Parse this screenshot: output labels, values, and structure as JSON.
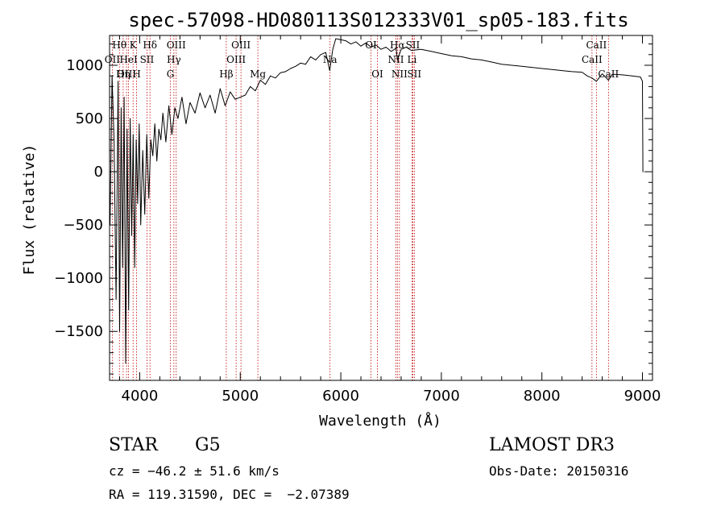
{
  "chart_data": {
    "type": "line",
    "title": "spec-57098-HD080113S012333V01_sp05-183.fits",
    "xlabel": "Wavelength (Å)",
    "ylabel": "Flux (relative)",
    "xlim": [
      3700,
      9100
    ],
    "ylim": [
      -1960,
      1280
    ],
    "xticks": [
      4000,
      5000,
      6000,
      7000,
      8000,
      9000
    ],
    "xtick_labels": [
      "4000",
      "5000",
      "6000",
      "7000",
      "8000",
      "9000"
    ],
    "yticks": [
      -1500,
      -1000,
      -500,
      0,
      500,
      1000
    ],
    "ytick_labels": [
      "−1500",
      "−1000",
      "−500",
      "0",
      "500",
      "1000"
    ],
    "series": [
      {
        "name": "flux",
        "x": [
          3705,
          3725,
          3745,
          3765,
          3785,
          3800,
          3815,
          3830,
          3845,
          3860,
          3875,
          3890,
          3905,
          3920,
          3935,
          3950,
          3965,
          3980,
          3995,
          4010,
          4030,
          4050,
          4070,
          4090,
          4110,
          4130,
          4150,
          4170,
          4190,
          4210,
          4230,
          4260,
          4290,
          4320,
          4350,
          4380,
          4420,
          4460,
          4500,
          4550,
          4600,
          4650,
          4700,
          4750,
          4800,
          4850,
          4900,
          4950,
          5000,
          5050,
          5100,
          5150,
          5200,
          5250,
          5300,
          5350,
          5400,
          5450,
          5500,
          5550,
          5600,
          5650,
          5700,
          5750,
          5800,
          5850,
          5890,
          5920,
          5950,
          6000,
          6050,
          6100,
          6150,
          6200,
          6250,
          6300,
          6350,
          6400,
          6450,
          6500,
          6550,
          6563,
          6600,
          6650,
          6700,
          6800,
          6900,
          7000,
          7100,
          7200,
          7300,
          7400,
          7500,
          7600,
          7700,
          7800,
          7900,
          8000,
          8100,
          8200,
          8300,
          8400,
          8450,
          8498,
          8542,
          8600,
          8662,
          8700,
          8800,
          8900,
          8980,
          9000,
          9005,
          9010
        ],
        "values": [
          -500,
          900,
          300,
          -1200,
          850,
          -1500,
          600,
          -900,
          700,
          -1800,
          400,
          -1300,
          500,
          -600,
          350,
          -900,
          300,
          -300,
          450,
          -500,
          200,
          -400,
          350,
          -250,
          300,
          150,
          450,
          100,
          400,
          300,
          550,
          280,
          620,
          350,
          600,
          500,
          700,
          450,
          650,
          550,
          740,
          600,
          720,
          550,
          780,
          620,
          750,
          680,
          700,
          720,
          800,
          760,
          860,
          820,
          900,
          880,
          930,
          940,
          970,
          990,
          1020,
          1010,
          1080,
          1050,
          1100,
          1120,
          950,
          1150,
          1250,
          1240,
          1230,
          1200,
          1220,
          1180,
          1210,
          1170,
          1190,
          1150,
          1170,
          1130,
          1160,
          1050,
          1150,
          1170,
          1140,
          1150,
          1130,
          1110,
          1090,
          1080,
          1060,
          1050,
          1030,
          1010,
          1000,
          990,
          980,
          970,
          960,
          950,
          940,
          935,
          900,
          880,
          850,
          920,
          860,
          915,
          910,
          900,
          890,
          850,
          0,
          0
        ]
      }
    ],
    "spectral_lines": [
      {
        "label": "Hθ",
        "wavelength": 3798,
        "row": 0
      },
      {
        "label": "OII",
        "wavelength": 3727,
        "row": 1
      },
      {
        "label": "OIII",
        "wavelength": 3869,
        "row": 2
      },
      {
        "label": "K",
        "wavelength": 3934,
        "row": 0
      },
      {
        "label": "HeI",
        "wavelength": 3889,
        "row": 1
      },
      {
        "label": "Hη",
        "wavelength": 3835,
        "row": 2
      },
      {
        "label": "H",
        "wavelength": 3969,
        "row": 2
      },
      {
        "label": "Hδ",
        "wavelength": 4102,
        "row": 0
      },
      {
        "label": "SII",
        "wavelength": 4072,
        "row": 1
      },
      {
        "label": "OIII",
        "wavelength": 4363,
        "row": 0
      },
      {
        "label": "Hγ",
        "wavelength": 4340,
        "row": 1
      },
      {
        "label": "G",
        "wavelength": 4305,
        "row": 2
      },
      {
        "label": "Hβ",
        "wavelength": 4861,
        "row": 2
      },
      {
        "label": "OIII",
        "wavelength": 5007,
        "row": 0
      },
      {
        "label": "OIII",
        "wavelength": 4959,
        "row": 1
      },
      {
        "label": "Mg",
        "wavelength": 5175,
        "row": 2
      },
      {
        "label": "Na",
        "wavelength": 5893,
        "row": 1
      },
      {
        "label": "OI",
        "wavelength": 6300,
        "row": 0
      },
      {
        "label": "OI",
        "wavelength": 6364,
        "row": 2
      },
      {
        "label": "Hα",
        "wavelength": 6563,
        "row": 0
      },
      {
        "label": "NII",
        "wavelength": 6548,
        "row": 1
      },
      {
        "label": "NII",
        "wavelength": 6583,
        "row": 2
      },
      {
        "label": "SII",
        "wavelength": 6716,
        "row": 0
      },
      {
        "label": "Li",
        "wavelength": 6708,
        "row": 1
      },
      {
        "label": "SII",
        "wavelength": 6731,
        "row": 2
      },
      {
        "label": "CaII",
        "wavelength": 8542,
        "row": 0
      },
      {
        "label": "CaII",
        "wavelength": 8498,
        "row": 1
      },
      {
        "label": "CaII",
        "wavelength": 8662,
        "row": 2
      }
    ],
    "line_color": "#000000",
    "marker_color": "#c00000"
  },
  "info": {
    "obj_class": "STAR",
    "subclass": "G5",
    "survey": "LAMOST DR3",
    "cz": "cz = −46.2 ± 51.6 km/s",
    "obs_date": "Obs-Date: 20150316",
    "radec": "RA = 119.31590, DEC =  −2.07389"
  }
}
